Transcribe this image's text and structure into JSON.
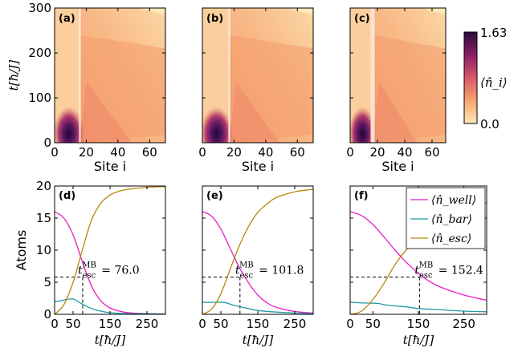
{
  "chart_data": [
    {
      "type": "heatmap",
      "panel": "(a)",
      "x": {
        "label": "Site i",
        "range": [
          0,
          70
        ],
        "ticks": [
          0,
          20,
          40,
          60
        ]
      },
      "y": {
        "label": "t[ħ/J]",
        "range": [
          0,
          300
        ],
        "ticks": [
          0,
          100,
          200,
          300
        ]
      },
      "barrier_site": 16,
      "barrier_width": 1
    },
    {
      "type": "heatmap",
      "panel": "(b)",
      "x": {
        "label": "Site i",
        "range": [
          0,
          70
        ],
        "ticks": [
          0,
          20,
          40,
          60
        ]
      },
      "y": {
        "range": [
          0,
          300
        ]
      },
      "barrier_site": 17,
      "barrier_width": 1
    },
    {
      "type": "heatmap",
      "panel": "(c)",
      "x": {
        "label": "Site i",
        "range": [
          0,
          70
        ],
        "ticks": [
          0,
          20,
          40,
          60
        ]
      },
      "y": {
        "range": [
          0,
          300
        ]
      },
      "barrier_site": 16.5,
      "barrier_width": 3
    },
    {
      "type": "line",
      "panel": "(d)",
      "xlabel": "t[ħ/J]",
      "ylabel": "Atoms",
      "xlim": [
        0,
        300
      ],
      "ylim": [
        0,
        20
      ],
      "xticks": [
        0,
        50,
        150,
        250
      ],
      "yticks": [
        0,
        5,
        10,
        15,
        20
      ],
      "annotation": {
        "label": "t_esc^MB = 76.0",
        "x": 76.0,
        "y": 5.8
      },
      "series": [
        {
          "name": "n_well",
          "x": [
            0,
            25,
            50,
            75,
            100,
            125,
            150,
            175,
            200,
            250,
            300
          ],
          "values": [
            16,
            15,
            12.4,
            8.2,
            4.4,
            2.1,
            1.0,
            0.5,
            0.25,
            0.1,
            0.05
          ]
        },
        {
          "name": "n_bar",
          "x": [
            0,
            15,
            30,
            50,
            60,
            75,
            100,
            125,
            150,
            200,
            300
          ],
          "values": [
            2.0,
            2.1,
            2.3,
            2.4,
            2.1,
            1.6,
            0.9,
            0.5,
            0.25,
            0.1,
            0.05
          ]
        },
        {
          "name": "n_esc",
          "x": [
            0,
            25,
            50,
            75,
            100,
            125,
            150,
            175,
            200,
            250,
            300
          ],
          "values": [
            0,
            1.5,
            5.0,
            10,
            14.7,
            17.3,
            18.6,
            19.2,
            19.5,
            19.8,
            19.9
          ]
        }
      ]
    },
    {
      "type": "line",
      "panel": "(e)",
      "xlabel": "t[ħ/J]",
      "xlim": [
        0,
        300
      ],
      "ylim": [
        0,
        20
      ],
      "xticks": [
        0,
        50,
        150,
        250
      ],
      "annotation": {
        "label": "t_esc^MB = 101.8",
        "x": 101.8,
        "y": 5.8
      },
      "series": [
        {
          "name": "n_well",
          "x": [
            0,
            25,
            50,
            75,
            100,
            125,
            150,
            175,
            200,
            250,
            300
          ],
          "values": [
            16,
            15.3,
            13.3,
            10.3,
            7.3,
            4.9,
            3.0,
            1.8,
            1.1,
            0.45,
            0.2
          ]
        },
        {
          "name": "n_bar",
          "x": [
            0,
            20,
            40,
            60,
            80,
            100,
            125,
            150,
            200,
            250,
            300
          ],
          "values": [
            1.9,
            1.85,
            1.9,
            1.85,
            1.5,
            1.2,
            0.9,
            0.6,
            0.35,
            0.2,
            0.1
          ]
        },
        {
          "name": "n_esc",
          "x": [
            0,
            25,
            50,
            75,
            100,
            125,
            150,
            175,
            200,
            250,
            300
          ],
          "values": [
            0,
            0.8,
            3.2,
            7.0,
            10.7,
            13.7,
            15.9,
            17.2,
            18.2,
            19.1,
            19.5
          ]
        }
      ]
    },
    {
      "type": "line",
      "panel": "(f)",
      "xlabel": "t[ħ/J]",
      "xlim": [
        0,
        300
      ],
      "ylim": [
        0,
        20
      ],
      "xticks": [
        0,
        50,
        150,
        250
      ],
      "annotation": {
        "label": "t_esc^MB = 152.4",
        "x": 152.4,
        "y": 5.8
      },
      "legend": "top-right",
      "series": [
        {
          "name": "⟨n̂_well⟩",
          "x": [
            0,
            25,
            50,
            75,
            100,
            125,
            150,
            175,
            200,
            250,
            300
          ],
          "values": [
            16,
            15.4,
            14.0,
            12.0,
            9.9,
            8.0,
            6.4,
            5.1,
            4.2,
            3.0,
            2.2
          ]
        },
        {
          "name": "⟨n̂_bar⟩",
          "x": [
            0,
            20,
            40,
            60,
            80,
            100,
            125,
            150,
            200,
            250,
            300
          ],
          "values": [
            1.9,
            1.8,
            1.75,
            1.7,
            1.45,
            1.3,
            1.15,
            0.9,
            0.7,
            0.5,
            0.4
          ]
        },
        {
          "name": "⟨n̂_esc⟩",
          "x": [
            0,
            25,
            50,
            75,
            100,
            125,
            150,
            175,
            200,
            250,
            300
          ],
          "values": [
            0,
            0.5,
            2.3,
            4.9,
            7.9,
            10.2,
            12.0,
            13.6,
            14.7,
            16.3,
            17.4
          ]
        }
      ]
    }
  ],
  "colorbar": {
    "label": "⟨n̂_i⟩",
    "max_label": "1.63",
    "min_label": "0.0",
    "vmin": 0.0,
    "vmax": 1.63
  },
  "colors": {
    "n_well": "#e81fc4",
    "n_bar": "#1f9aa6",
    "n_esc": "#b8860b",
    "dashed": "#000000",
    "panel_bg": "#fde8b8"
  },
  "labels": {
    "panel_a": "(a)",
    "panel_b": "(b)",
    "panel_c": "(c)",
    "panel_d": "(d)",
    "panel_e": "(e)",
    "panel_f": "(f)",
    "site_label": "Site i",
    "t_label": "t[ħ/J]",
    "atoms_label": "Atoms",
    "ann_d": "= 76.0",
    "ann_e": "= 101.8",
    "ann_f": "= 152.4",
    "t_esc_base": "t",
    "t_esc_sub": "esc",
    "t_esc_sup": "MB"
  }
}
